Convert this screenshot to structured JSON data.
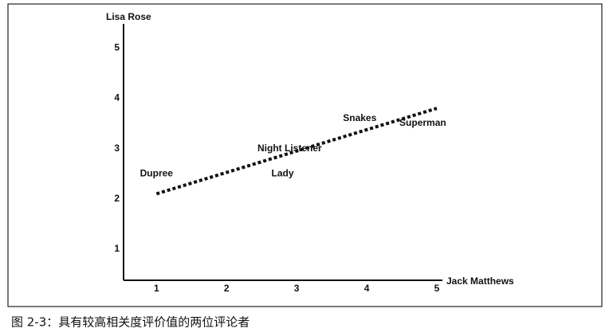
{
  "chart_data": {
    "type": "scatter",
    "caption": "图 2-3：具有较高相关度评价值的两位评论者",
    "x_label": "Jack Matthews",
    "y_label": "Lisa Rose",
    "point_labels": [
      "Dupree",
      "Lady",
      "Night Listener",
      "Snakes",
      "Superman"
    ],
    "x": [
      1,
      2.8,
      2.9,
      3.9,
      4.8
    ],
    "values": [
      2.5,
      2.5,
      3,
      3.6,
      3.5
    ],
    "trend_line": {
      "x": [
        1,
        5
      ],
      "y": [
        2.1,
        3.8
      ]
    },
    "xlim": [
      0.53,
      5.08
    ],
    "ylim": [
      0.38,
      5.48
    ],
    "xticks": [
      1,
      2,
      3,
      4,
      5
    ],
    "yticks": [
      1,
      2,
      3,
      4,
      5
    ],
    "grid": false,
    "color": "#111111"
  }
}
